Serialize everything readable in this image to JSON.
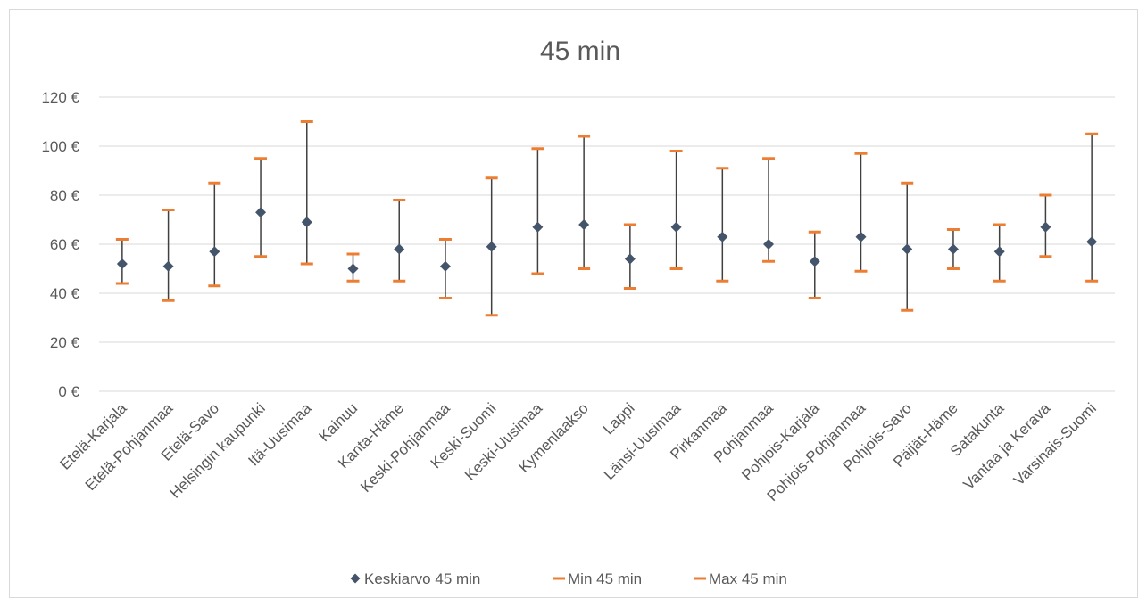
{
  "chart_data": {
    "type": "scatter",
    "title": "45 min",
    "xlabel": "",
    "ylabel": "",
    "ylim": [
      0,
      120
    ],
    "y_ticks": [
      "0 €",
      "20 €",
      "40 €",
      "60 €",
      "80 €",
      "100 €",
      "120 €"
    ],
    "grid": true,
    "legend_position": "bottom",
    "categories": [
      "Etelä-Karjala",
      "Etelä-Pohjanmaa",
      "Etelä-Savo",
      "Helsingin kaupunki",
      "Itä-Uusimaa",
      "Kainuu",
      "Kanta-Häme",
      "Keski-Pohjanmaa",
      "Keski-Suomi",
      "Keski-Uusimaa",
      "Kymenlaakso",
      "Lappi",
      "Länsi-Uusimaa",
      "Pirkanmaa",
      "Pohjanmaa",
      "Pohjois-Karjala",
      "Pohjois-Pohjanmaa",
      "Pohjois-Savo",
      "Päijät-Häme",
      "Satakunta",
      "Vantaa ja Kerava",
      "Varsinais-Suomi"
    ],
    "series": [
      {
        "name": "Keskiarvo 45 min",
        "marker": "diamond",
        "color": "#44546a",
        "values": [
          52,
          51,
          57,
          73,
          69,
          50,
          58,
          51,
          59,
          67,
          68,
          54,
          67,
          63,
          60,
          53,
          63,
          58,
          58,
          57,
          67,
          61
        ]
      },
      {
        "name": "Min 45 min",
        "marker": "dash",
        "color": "#ed7d31",
        "values": [
          44,
          37,
          43,
          55,
          52,
          45,
          45,
          38,
          31,
          48,
          50,
          42,
          50,
          45,
          53,
          38,
          49,
          33,
          50,
          45,
          55,
          45
        ]
      },
      {
        "name": "Max 45 min",
        "marker": "dash",
        "color": "#ed7d31",
        "values": [
          62,
          74,
          85,
          95,
          110,
          56,
          78,
          62,
          87,
          99,
          104,
          68,
          98,
          91,
          95,
          65,
          97,
          85,
          66,
          68,
          80,
          105
        ]
      }
    ],
    "colors": {
      "gridline": "#d9d9d9",
      "error_bar": "#404040",
      "text": "#595959"
    }
  }
}
